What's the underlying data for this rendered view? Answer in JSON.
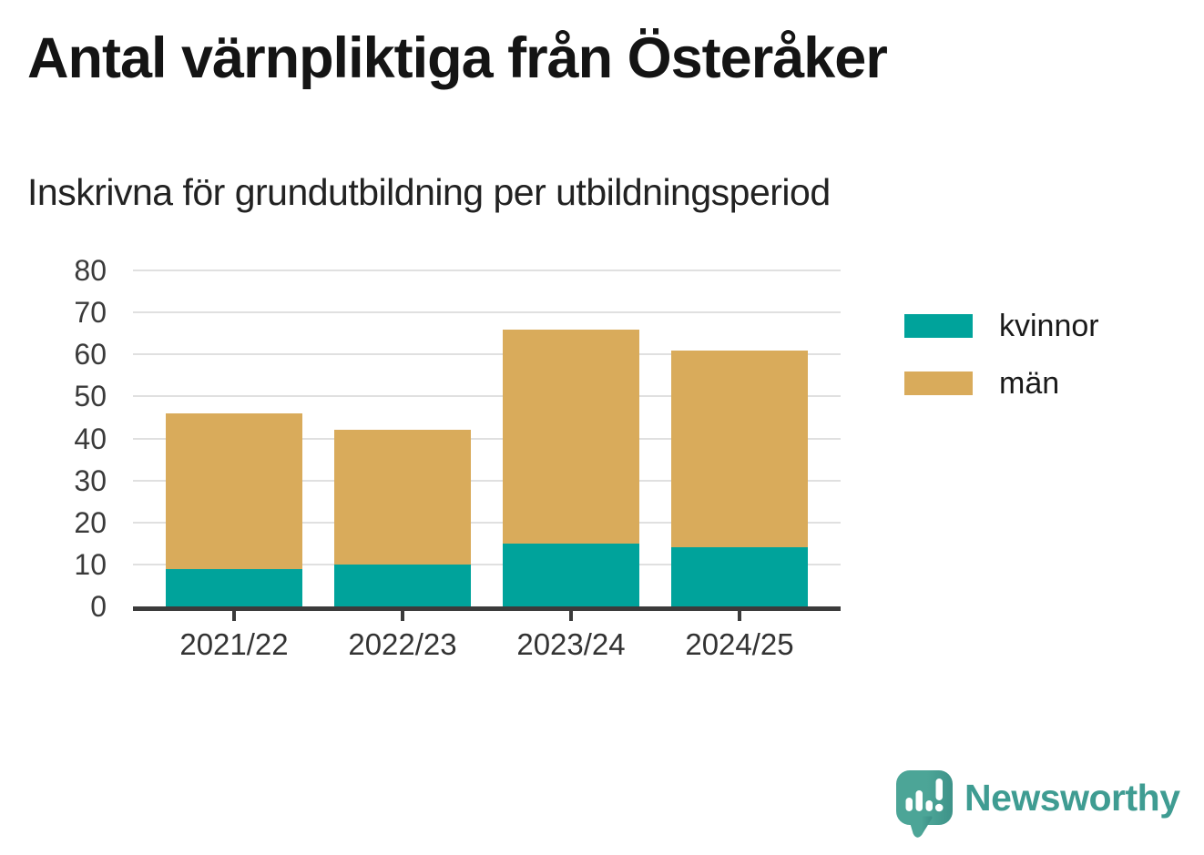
{
  "header": {
    "title": "Antal värnpliktiga från Österåker",
    "subtitle": "Inskrivna för grundutbildning per utbildningsperiod"
  },
  "chart_data": {
    "type": "bar",
    "stacked": true,
    "categories": [
      "2021/22",
      "2022/23",
      "2023/24",
      "2024/25"
    ],
    "series": [
      {
        "name": "kvinnor",
        "color": "#00a39b",
        "values": [
          9,
          10,
          15,
          14
        ]
      },
      {
        "name": "män",
        "color": "#d9ab5b",
        "values": [
          37,
          32,
          51,
          47
        ]
      }
    ],
    "totals": [
      46,
      42,
      66,
      61
    ],
    "xlabel": "",
    "ylabel": "",
    "ylim": [
      0,
      80
    ],
    "yticks": [
      0,
      10,
      20,
      30,
      40,
      50,
      60,
      70,
      80
    ],
    "grid": "horizontal",
    "legend_position": "right",
    "axis_color": "#3b3b3b",
    "grid_color": "#e0e0e0",
    "tick_label_color": "#3a3a3a"
  },
  "brand": {
    "logo_text": "Newsworthy",
    "text_color": "#3f9c92",
    "icon_color": "#4ca597",
    "icon_color_dark": "#3e9389"
  }
}
